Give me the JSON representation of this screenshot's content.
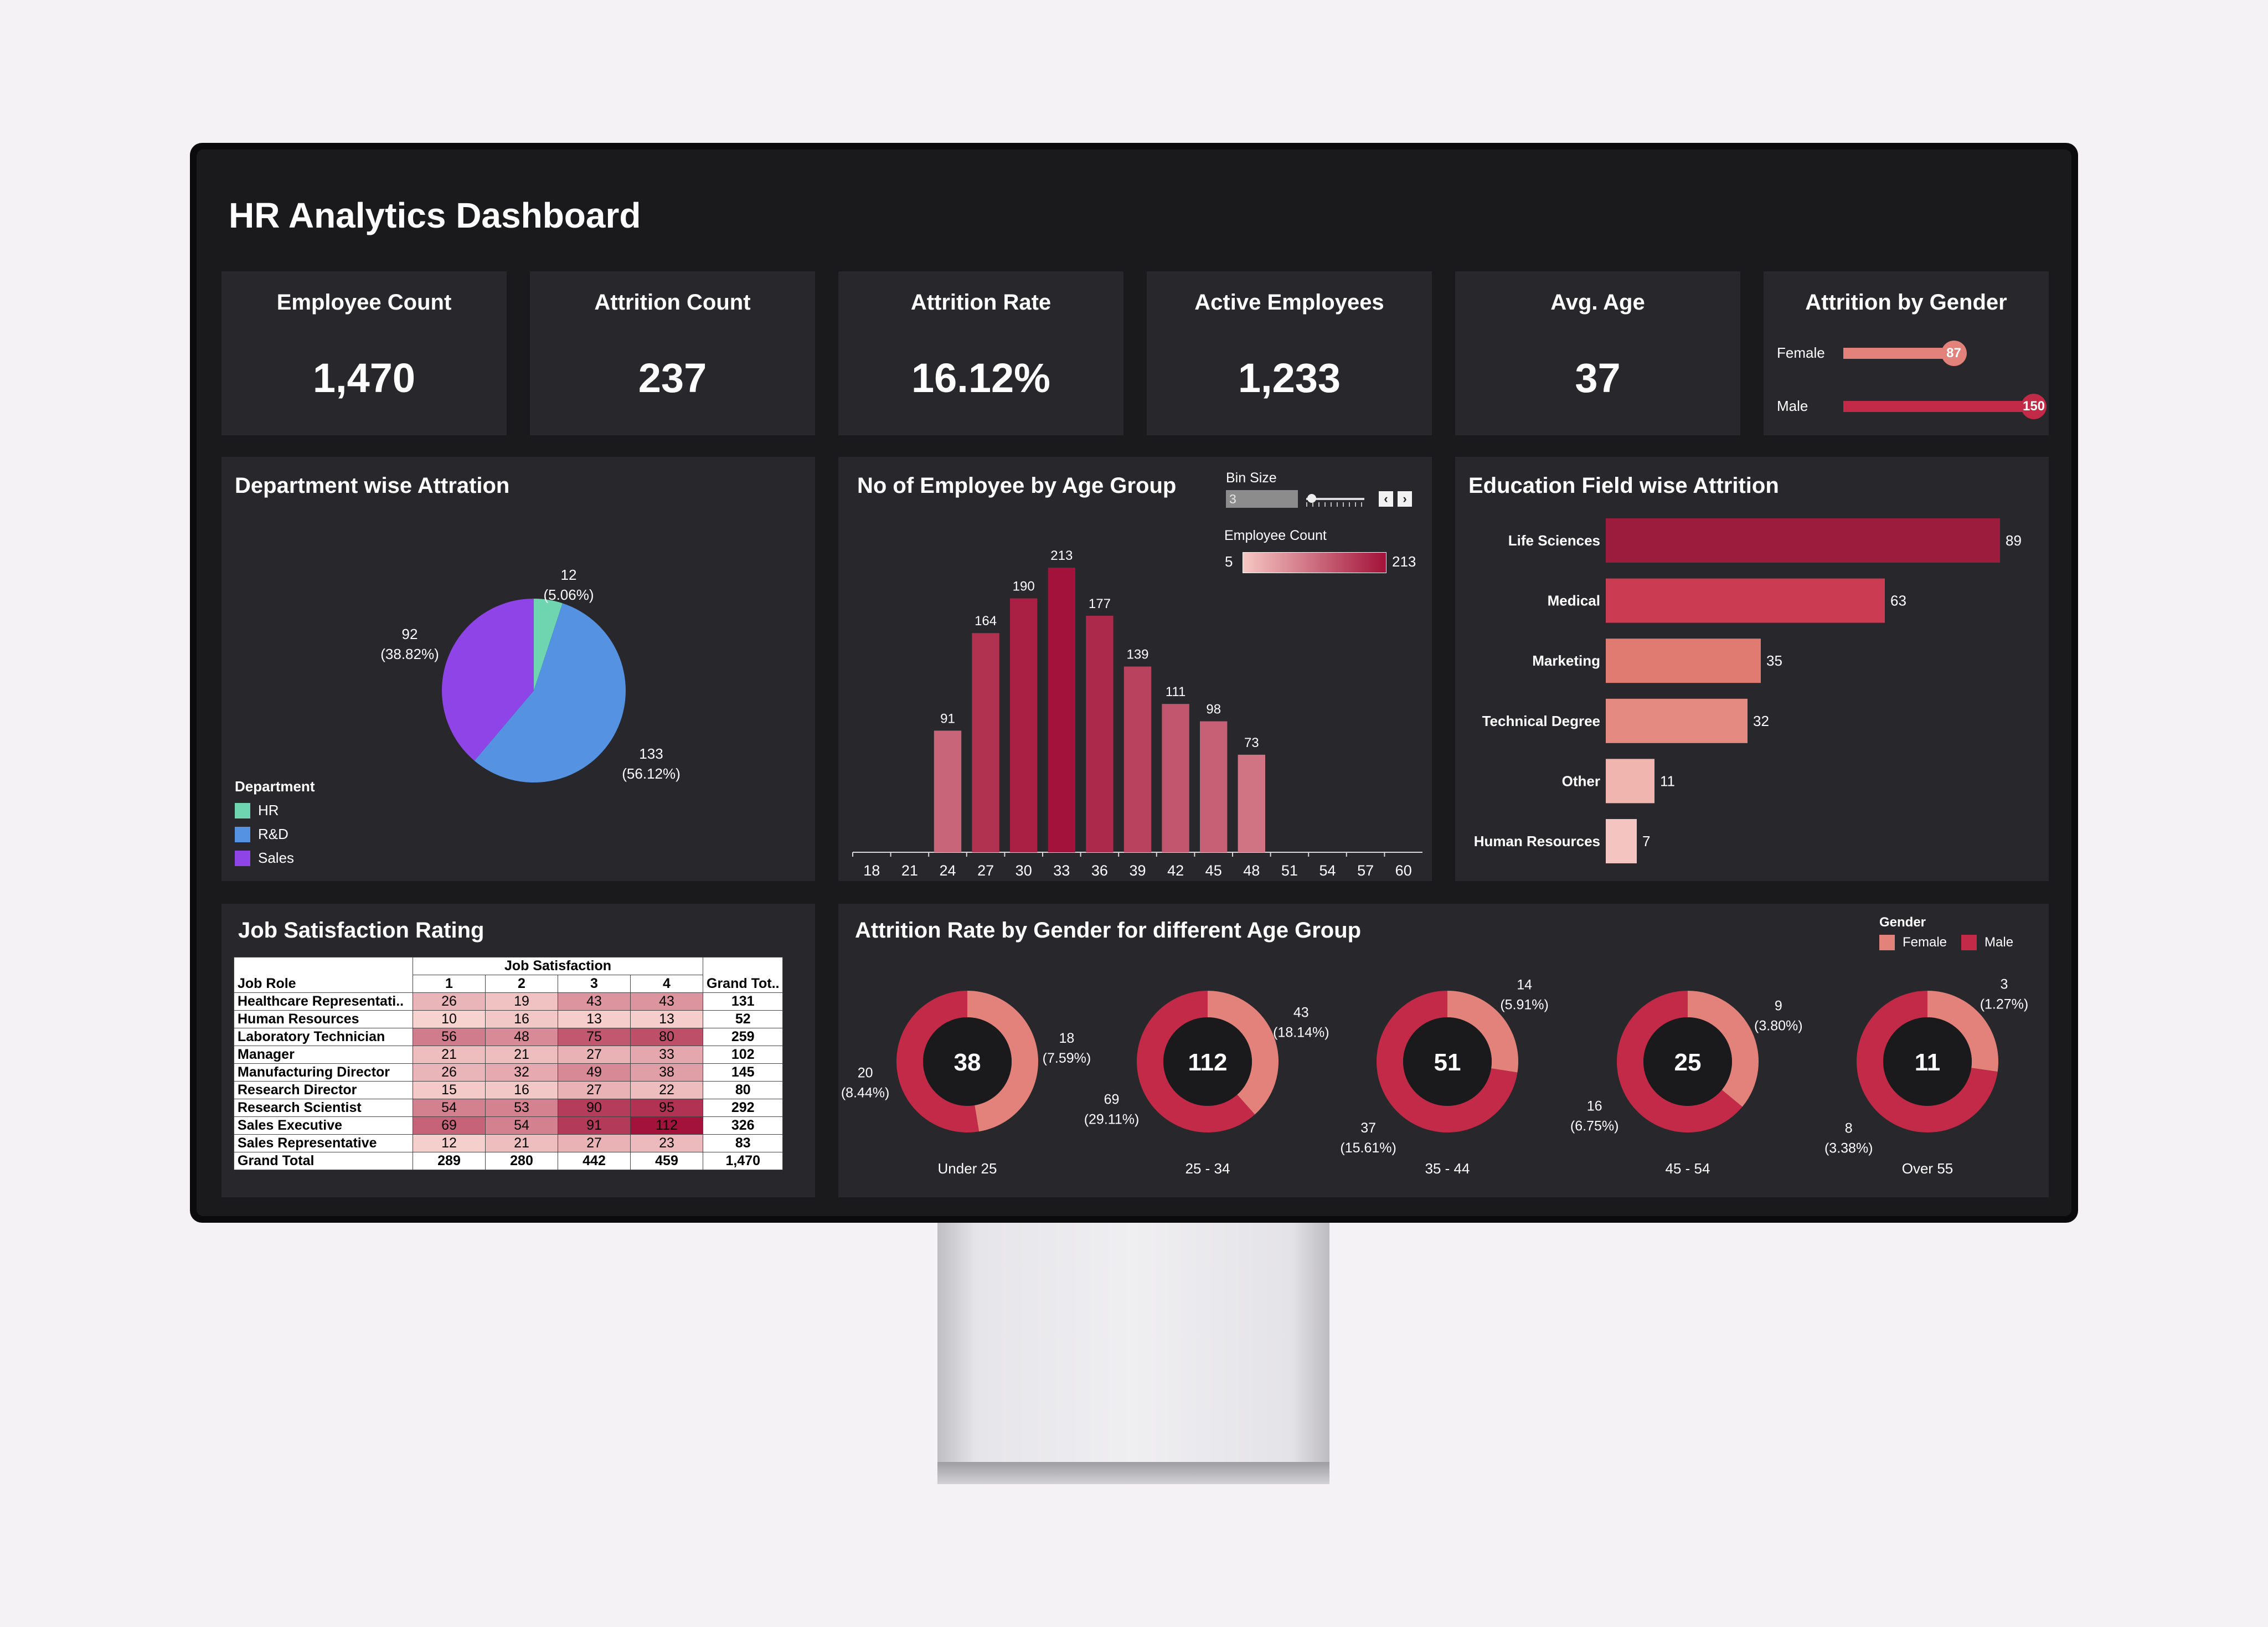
{
  "dashboard": {
    "title": "HR Analytics Dashboard"
  },
  "kpis": [
    {
      "label": "Employee Count",
      "value": "1,470"
    },
    {
      "label": "Attrition Count",
      "value": "237"
    },
    {
      "label": "Attrition Rate",
      "value": "16.12%"
    },
    {
      "label": "Active Employees",
      "value": "1,233"
    },
    {
      "label": "Avg. Age",
      "value": "37"
    }
  ],
  "attrition_by_gender": {
    "title": "Attrition by Gender",
    "max": 150,
    "items": [
      {
        "label": "Female",
        "value": 87,
        "display": "87",
        "color": "#e3827a"
      },
      {
        "label": "Male",
        "value": 150,
        "display": "150",
        "color": "#c22a47"
      }
    ]
  },
  "department": {
    "title": "Department wise Attration",
    "legend_title": "Department",
    "legend": [
      {
        "label": "HR",
        "color": "#6fd5b1"
      },
      {
        "label": "R&D",
        "color": "#5593e2"
      },
      {
        "label": "Sales",
        "color": "#8e44e6"
      }
    ],
    "labels": [
      {
        "line1": "12",
        "line2": "(5.06%)"
      },
      {
        "line1": "133",
        "line2": "(56.12%)"
      },
      {
        "line1": "92",
        "line2": "(38.82%)"
      }
    ]
  },
  "age_histogram": {
    "title": "No of Employee by Age Group",
    "bin_label": "Bin Size",
    "bin_value": "3",
    "legend_title": "Employee Count",
    "legend_min": "5",
    "legend_max": "213"
  },
  "education": {
    "title": "Education Field wise Attrition"
  },
  "job_satisfaction": {
    "title": "Job Satisfaction Rating",
    "group_header": "Job Satisfaction",
    "role_header": "Job Role",
    "level_headers": [
      "1",
      "2",
      "3",
      "4"
    ],
    "total_header": "Grand Tot..",
    "rows": [
      {
        "role": "Healthcare Representati..",
        "v": [
          "26",
          "19",
          "43",
          "43"
        ],
        "total": "131"
      },
      {
        "role": "Human Resources",
        "v": [
          "10",
          "16",
          "13",
          "13"
        ],
        "total": "52"
      },
      {
        "role": "Laboratory Technician",
        "v": [
          "56",
          "48",
          "75",
          "80"
        ],
        "total": "259"
      },
      {
        "role": "Manager",
        "v": [
          "21",
          "21",
          "27",
          "33"
        ],
        "total": "102"
      },
      {
        "role": "Manufacturing Director",
        "v": [
          "26",
          "32",
          "49",
          "38"
        ],
        "total": "145"
      },
      {
        "role": "Research Director",
        "v": [
          "15",
          "16",
          "27",
          "22"
        ],
        "total": "80"
      },
      {
        "role": "Research Scientist",
        "v": [
          "54",
          "53",
          "90",
          "95"
        ],
        "total": "292"
      },
      {
        "role": "Sales Executive",
        "v": [
          "69",
          "54",
          "91",
          "112"
        ],
        "total": "326"
      },
      {
        "role": "Sales Representative",
        "v": [
          "12",
          "21",
          "27",
          "23"
        ],
        "total": "83"
      }
    ],
    "grand_total": {
      "role": "Grand Total",
      "v": [
        "289",
        "280",
        "442",
        "459"
      ],
      "total": "1,470"
    }
  },
  "gender_age": {
    "title": "Attrition Rate by Gender for different Age Group",
    "legend_title": "Gender",
    "legend": [
      {
        "label": "Female",
        "color": "#e3827a"
      },
      {
        "label": "Male",
        "color": "#c22a47"
      }
    ]
  },
  "chart_data": [
    {
      "type": "pie",
      "title": "Department wise Attration",
      "categories": [
        "HR",
        "R&D",
        "Sales"
      ],
      "values": [
        12,
        133,
        92
      ],
      "percent_labels": [
        "5.06%",
        "56.12%",
        "38.82%"
      ],
      "colors": [
        "#6fd5b1",
        "#5593e2",
        "#8e44e6"
      ],
      "legend": "bottom-left"
    },
    {
      "type": "bar",
      "title": "No of Employee by Age Group",
      "categories": [
        "18",
        "21",
        "24",
        "27",
        "30",
        "33",
        "36",
        "39",
        "42",
        "45",
        "48",
        "51",
        "54",
        "57",
        "60"
      ],
      "values": [
        null,
        null,
        91,
        164,
        190,
        213,
        177,
        139,
        111,
        98,
        73,
        null,
        null,
        null,
        null
      ],
      "color_scale": {
        "min": 5,
        "max": 213,
        "colors": [
          "#f6c7c3",
          "#a3123a"
        ]
      }
    },
    {
      "type": "bar",
      "orientation": "horizontal",
      "title": "Education Field wise Attrition",
      "categories": [
        "Life Sciences",
        "Medical",
        "Marketing",
        "Technical Degree",
        "Other",
        "Human Resources"
      ],
      "values": [
        89,
        63,
        35,
        32,
        11,
        7
      ],
      "colors": [
        "#9c1c3e",
        "#cb3b52",
        "#e07b72",
        "#e48a80",
        "#f1b5b0",
        "#f4c4c0"
      ]
    },
    {
      "type": "pie",
      "style": "donut",
      "title": "Attrition Rate by Gender for different Age Group",
      "categories": [
        "Under 25",
        "25 - 34",
        "35 - 44",
        "45 - 54",
        "Over 55"
      ],
      "totals": [
        "38",
        "112",
        "51",
        "25",
        "11"
      ],
      "series": [
        {
          "name": "Female",
          "values": [
            18,
            43,
            14,
            9,
            3
          ],
          "labels": [
            "(7.59%)",
            "(18.14%)",
            "(5.91%)",
            "(3.80%)",
            "(1.27%)"
          ]
        },
        {
          "name": "Male",
          "values": [
            20,
            69,
            37,
            16,
            8
          ],
          "labels": [
            "(8.44%)",
            "(29.11%)",
            "(15.61%)",
            "(6.75%)",
            "(3.38%)"
          ]
        }
      ],
      "legend": "top-right"
    }
  ]
}
